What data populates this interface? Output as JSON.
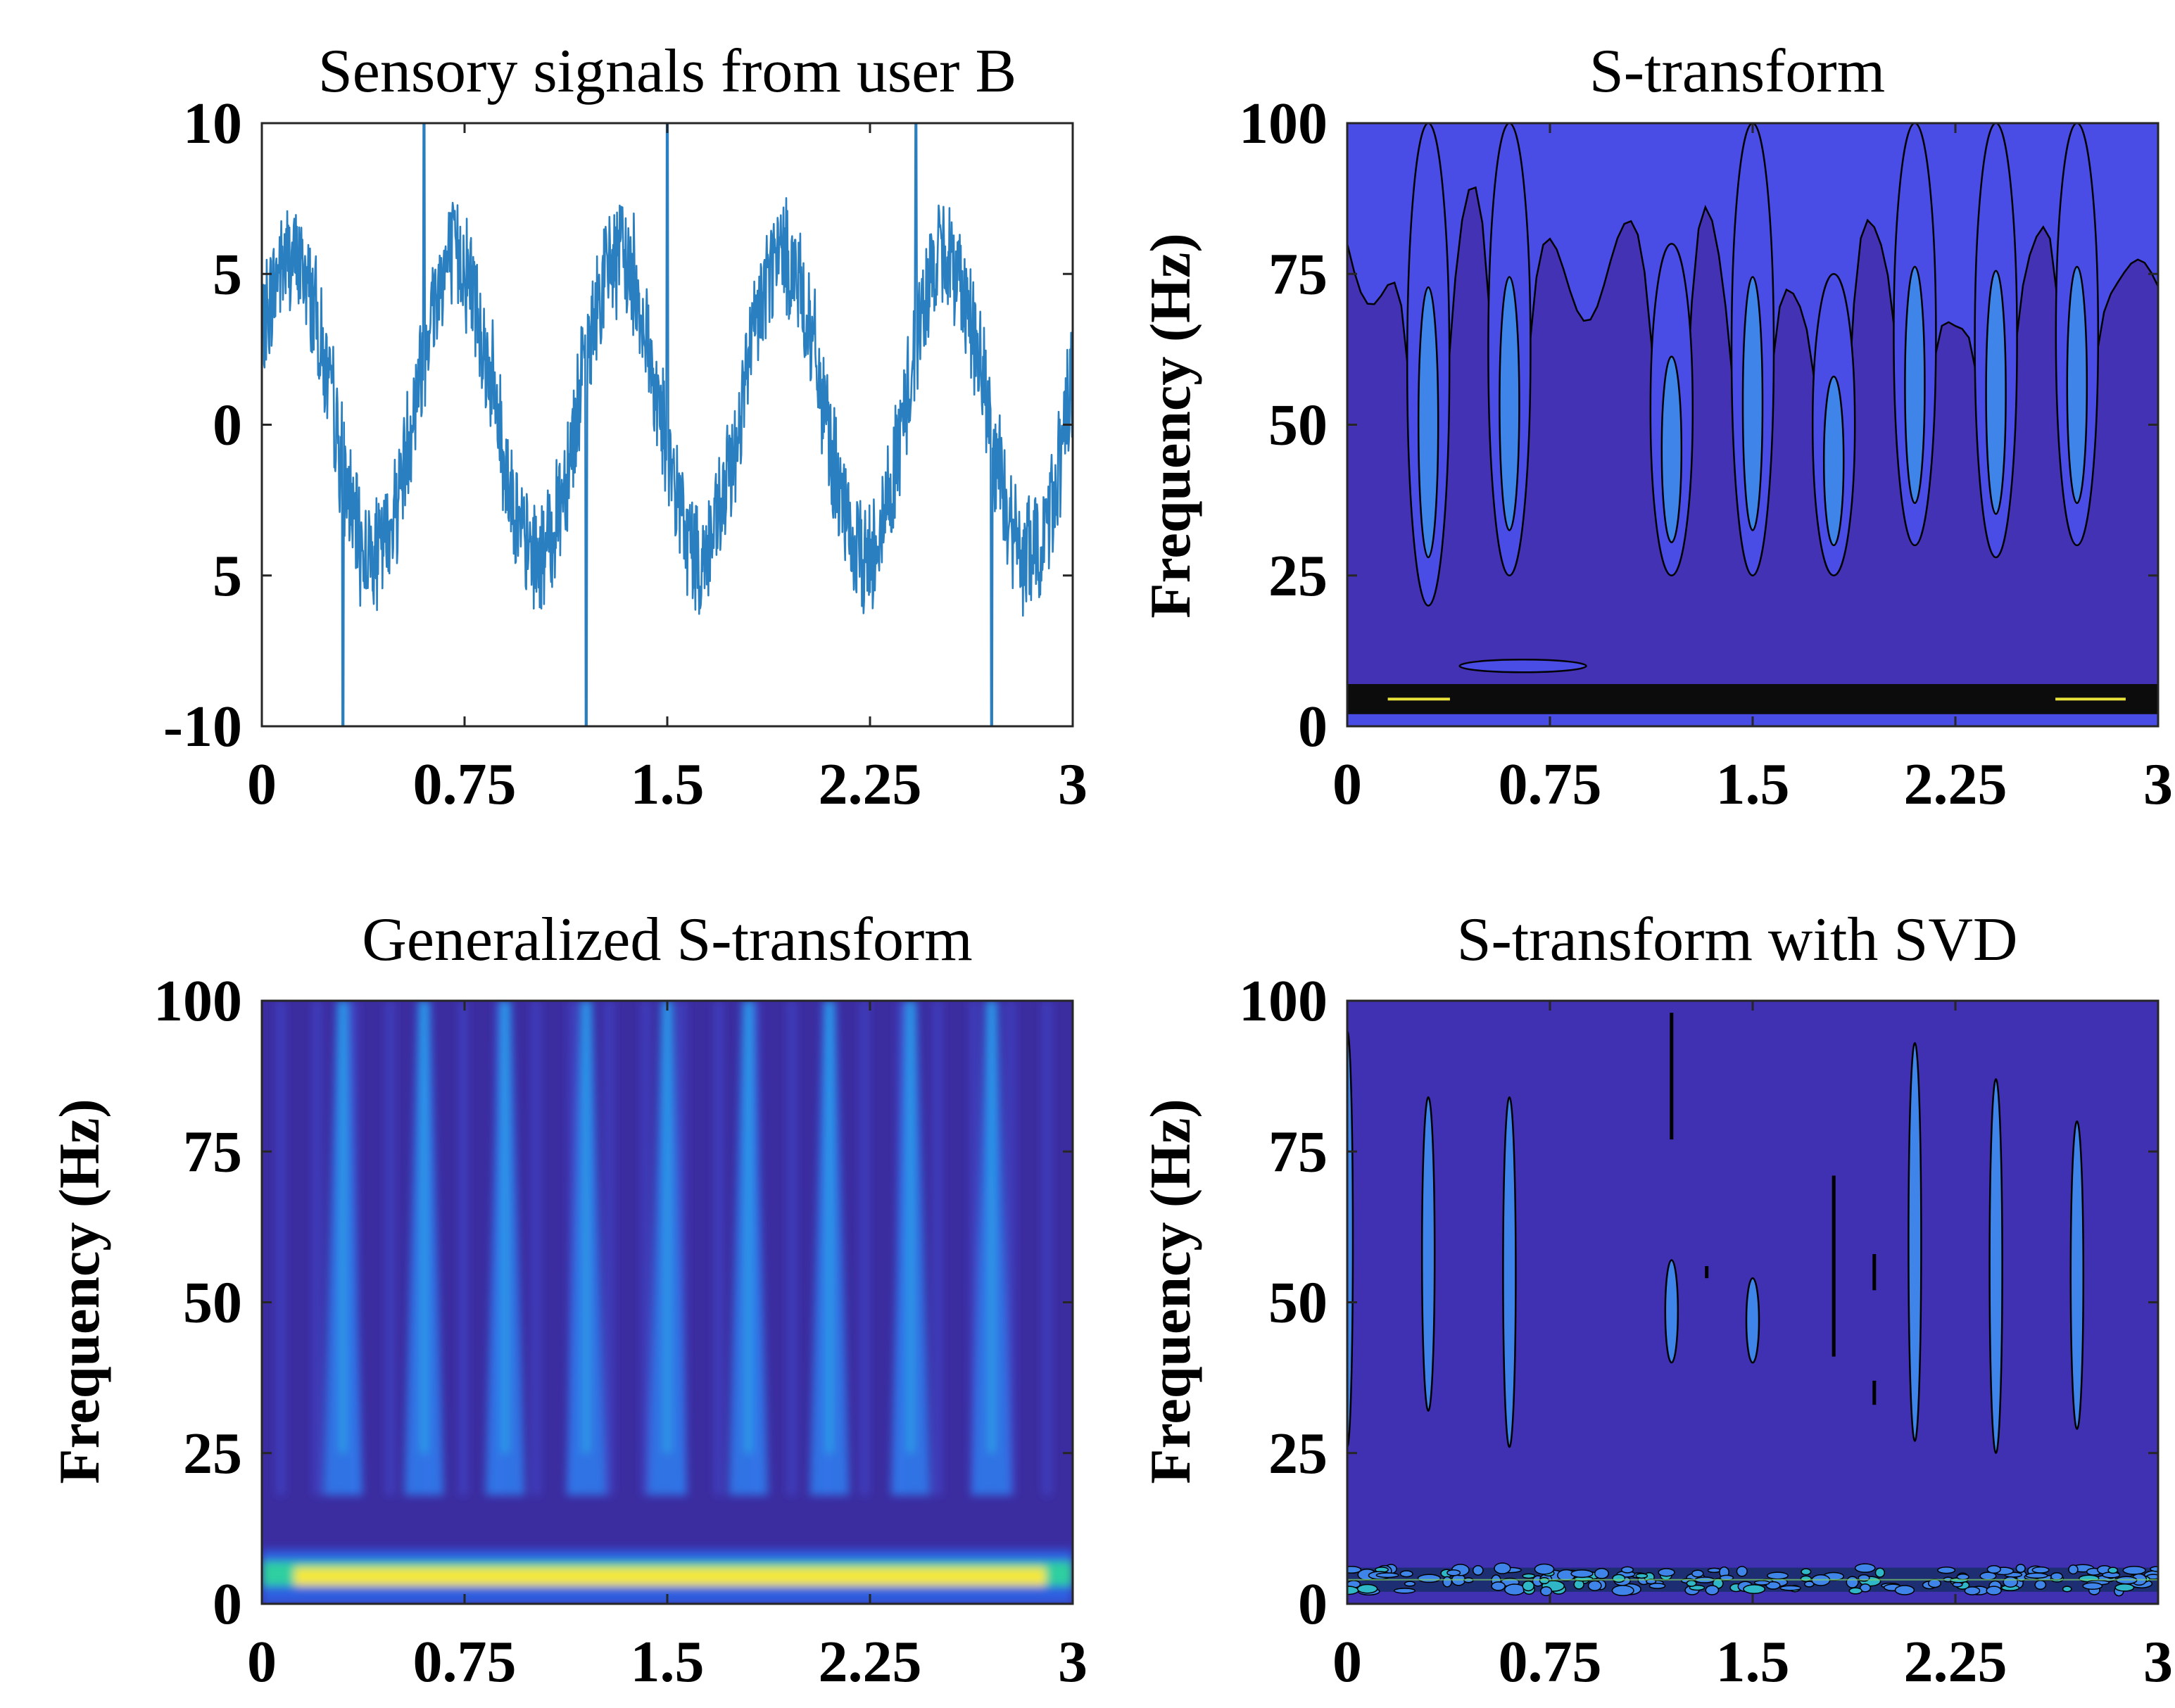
{
  "chart_data": [
    {
      "type": "line",
      "title": "Sensory signals from user B",
      "xlabel": "",
      "ylabel": "",
      "xlim": [
        0,
        3
      ],
      "ylim": [
        -10,
        10
      ],
      "x_ticks": [
        "0",
        "0.75",
        "1.5",
        "2.25",
        "3"
      ],
      "y_ticks": [
        "10",
        "5",
        "0",
        "5",
        "-10"
      ],
      "line_color": "#2a7fc1",
      "series": [
        {
          "name": "signal",
          "description_values": {
            "base_frequency_hz": 1.65,
            "amplitude": 5,
            "noise_amplitude": 1.8,
            "spike_times": [
              0.6,
              1.5,
              2.42
            ],
            "dip_times": [
              0.3,
              1.2,
              2.7
            ]
          }
        }
      ]
    },
    {
      "type": "heatmap",
      "style": "contour",
      "title": "S-transform",
      "xlabel": "",
      "ylabel": "Frequency (Hz)",
      "xlim": [
        0,
        3
      ],
      "ylim": [
        0,
        100
      ],
      "x_ticks": [
        "0",
        "0.75",
        "1.5",
        "2.25",
        "3"
      ],
      "y_ticks": [
        "100",
        "75",
        "50",
        "25",
        "0"
      ],
      "bright_band_hz": [
        2,
        7
      ],
      "columns": [
        {
          "t": 0.3,
          "f_low": 20,
          "f_high": 100
        },
        {
          "t": 0.6,
          "f_low": 25,
          "f_high": 100
        },
        {
          "t": 1.2,
          "f_low": 25,
          "f_high": 80
        },
        {
          "t": 1.5,
          "f_low": 25,
          "f_high": 100
        },
        {
          "t": 1.8,
          "f_low": 25,
          "f_high": 75
        },
        {
          "t": 2.1,
          "f_low": 30,
          "f_high": 100
        },
        {
          "t": 2.4,
          "f_low": 28,
          "f_high": 100
        },
        {
          "t": 2.7,
          "f_low": 30,
          "f_high": 100
        }
      ]
    },
    {
      "type": "heatmap",
      "title": "Generalized S-transform",
      "xlabel": "",
      "ylabel": "Frequency (Hz)",
      "xlim": [
        0,
        3
      ],
      "ylim": [
        0,
        100
      ],
      "x_ticks": [
        "0",
        "0.75",
        "1.5",
        "2.25",
        "3"
      ],
      "y_ticks": [
        "100",
        "75",
        "50",
        "25",
        "0"
      ],
      "bright_band_hz": [
        3,
        6
      ],
      "streak_times": [
        0.3,
        0.6,
        0.9,
        1.2,
        1.5,
        1.8,
        2.1,
        2.4,
        2.7
      ]
    },
    {
      "type": "heatmap",
      "style": "contour",
      "title": "S-transform with SVD",
      "xlabel": "",
      "ylabel": "Frequency (Hz)",
      "xlim": [
        0,
        3
      ],
      "ylim": [
        0,
        100
      ],
      "x_ticks": [
        "0",
        "0.75",
        "1.5",
        "2.25",
        "3"
      ],
      "y_ticks": [
        "100",
        "75",
        "50",
        "25",
        "0"
      ],
      "bright_band_hz": [
        2,
        6
      ],
      "ellipses": [
        {
          "t": 0.3,
          "f_low": 32,
          "f_high": 84
        },
        {
          "t": 0.6,
          "f_low": 26,
          "f_high": 84
        },
        {
          "t": 1.2,
          "f_low": 40,
          "f_high": 57
        },
        {
          "t": 1.5,
          "f_low": 40,
          "f_high": 54
        },
        {
          "t": 2.1,
          "f_low": 27,
          "f_high": 93
        },
        {
          "t": 2.4,
          "f_low": 25,
          "f_high": 87
        },
        {
          "t": 2.7,
          "f_low": 29,
          "f_high": 80
        }
      ],
      "line_marks": [
        {
          "t": 1.2,
          "f_low": 77,
          "f_high": 98
        },
        {
          "t": 1.8,
          "f_low": 41,
          "f_high": 71
        },
        {
          "t": 1.95,
          "f_low": 52,
          "f_high": 58
        },
        {
          "t": 1.95,
          "f_low": 33,
          "f_high": 37
        },
        {
          "t": 1.33,
          "f_low": 54,
          "f_high": 56
        }
      ]
    }
  ]
}
